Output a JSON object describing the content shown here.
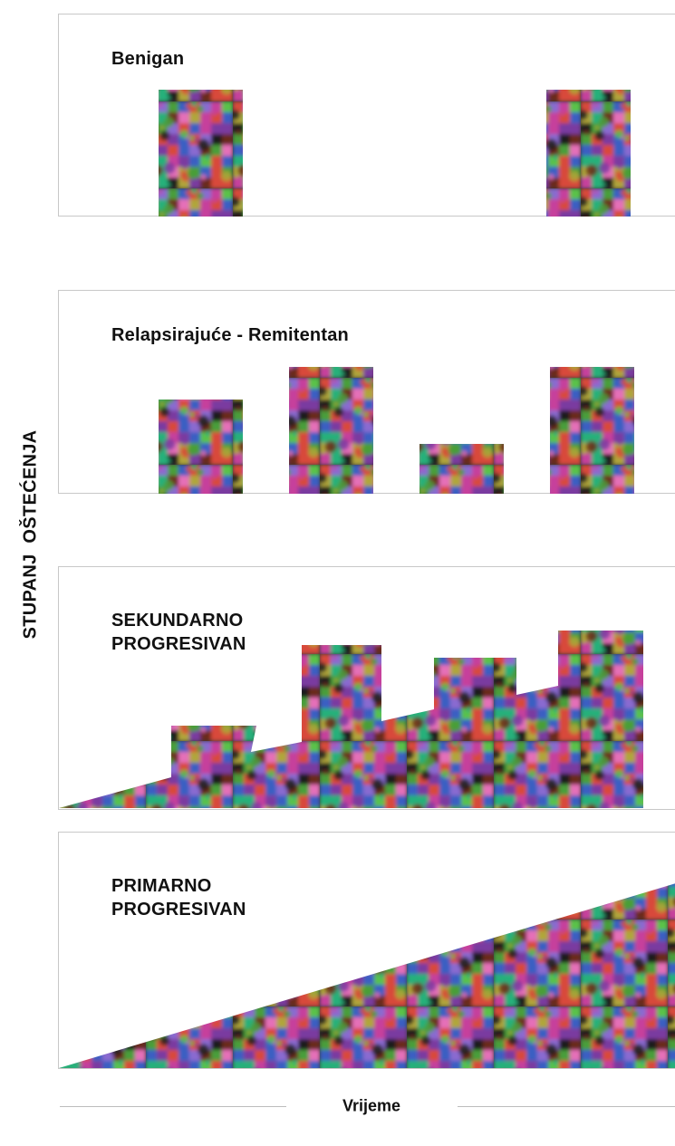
{
  "axes": {
    "y_label": "STUPANJ OŠTEĆENJA",
    "x_label": "Vrijeme"
  },
  "panels": {
    "benign": {
      "title": "Benigan"
    },
    "relapsing_remitting": {
      "title": "Relapsirajuće - Remitentan"
    },
    "secondary_progressive": {
      "title": "SEKUNDARNO\nPROGRESIVAN"
    },
    "primary_progressive": {
      "title": "PRIMARNO\nPROGRESIVAN"
    }
  },
  "texture_colors": [
    "#c63f9c",
    "#4a9e3a",
    "#3a5fc2",
    "#6a2a1a",
    "#26b07a",
    "#d84a3a",
    "#8a6bd0",
    "#b0a63a",
    "#1f1f1f",
    "#e56fb8",
    "#5ac24a",
    "#7a3aa0"
  ]
}
